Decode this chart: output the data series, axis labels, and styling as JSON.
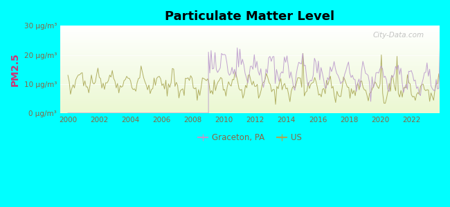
{
  "title": "Particulate Matter Level",
  "ylabel": "PM2.5",
  "background_outer": "#00FFFF",
  "ylim": [
    0,
    30
  ],
  "yticks": [
    0,
    10,
    20,
    30
  ],
  "ytick_labels": [
    "0 μg/m³",
    "10 μg/m³",
    "20 μg/m³",
    "30 μg/m³"
  ],
  "xmin": 1999.5,
  "xmax": 2023.8,
  "xticks": [
    2000,
    2002,
    2004,
    2006,
    2008,
    2010,
    2012,
    2014,
    2016,
    2018,
    2020,
    2022
  ],
  "graceton_color": "#bb99cc",
  "us_color": "#aaa855",
  "watermark": "City-Data.com",
  "legend_graceton": "Graceton, PA",
  "legend_us": "US",
  "tick_color": "#888866",
  "label_color": "#886644",
  "ylabel_color": "#cc3377"
}
